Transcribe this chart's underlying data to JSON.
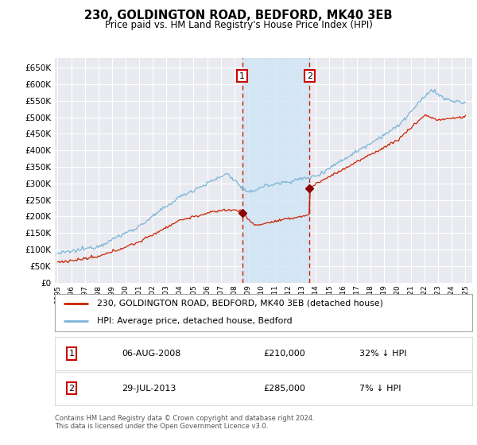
{
  "title": "230, GOLDINGTON ROAD, BEDFORD, MK40 3EB",
  "subtitle": "Price paid vs. HM Land Registry's House Price Index (HPI)",
  "background_color": "#ffffff",
  "plot_bg_color": "#e8eaf0",
  "grid_color": "#ffffff",
  "ylim": [
    0,
    680000
  ],
  "yticks": [
    0,
    50000,
    100000,
    150000,
    200000,
    250000,
    300000,
    350000,
    400000,
    450000,
    500000,
    550000,
    600000,
    650000
  ],
  "ytick_labels": [
    "£0",
    "£50K",
    "£100K",
    "£150K",
    "£200K",
    "£250K",
    "£300K",
    "£350K",
    "£400K",
    "£450K",
    "£500K",
    "£550K",
    "£600K",
    "£650K"
  ],
  "event1_year": 2008.58,
  "event1_price": 210000,
  "event2_year": 2013.54,
  "event2_price": 285000,
  "legend_line1": "230, GOLDINGTON ROAD, BEDFORD, MK40 3EB (detached house)",
  "legend_line2": "HPI: Average price, detached house, Bedford",
  "footer": "Contains HM Land Registry data © Crown copyright and database right 2024.\nThis data is licensed under the Open Government Licence v3.0.",
  "hpi_color": "#7ab4d8",
  "price_color": "#cc2200",
  "event_box_color": "#cc0000",
  "shade_color": "#d0e4f5",
  "dashed_color": "#cc2200",
  "marker_color": "#8b0000"
}
